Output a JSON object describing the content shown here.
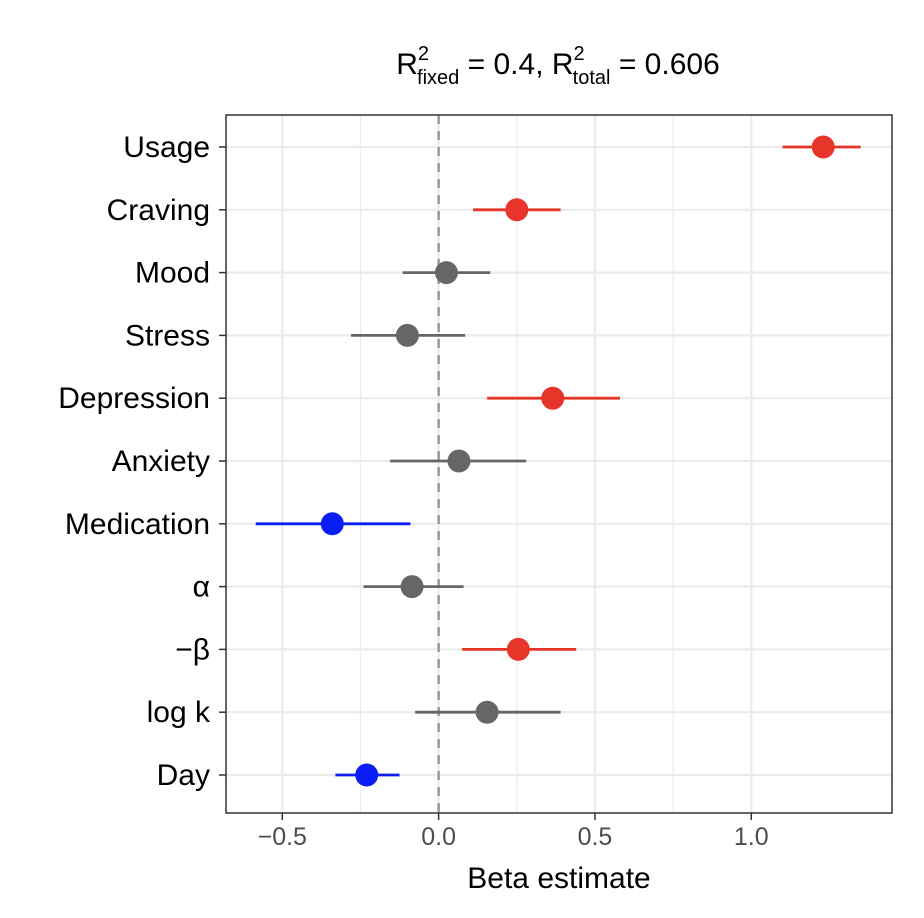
{
  "chart_data": {
    "type": "forest",
    "title": {
      "r_symbol": "R",
      "sup": "2",
      "fixed_sub": "fixed",
      "fixed_value": " = 0.4, ",
      "total_sub": "total",
      "total_value": " = 0.606"
    },
    "xlabel": "Beta estimate",
    "xlim": [
      -0.68,
      1.45
    ],
    "xticks": [
      -0.5,
      0.0,
      0.5,
      1.0
    ],
    "xtick_labels": [
      "−0.5",
      "0.0",
      "0.5",
      "1.0"
    ],
    "reference_line": 0,
    "grid": true,
    "colors": {
      "positive": "#e8352a",
      "negative": "#0a1ef5",
      "nonsignificant": "#666666",
      "reference": "#999999",
      "grid": "#ebebeb",
      "border": "#333333"
    },
    "points": [
      {
        "label": "Usage",
        "estimate": 1.23,
        "lower": 1.1,
        "upper": 1.35,
        "sig": "positive"
      },
      {
        "label": "Craving",
        "estimate": 0.25,
        "lower": 0.11,
        "upper": 0.39,
        "sig": "positive"
      },
      {
        "label": "Mood",
        "estimate": 0.025,
        "lower": -0.115,
        "upper": 0.165,
        "sig": "nonsignificant"
      },
      {
        "label": "Stress",
        "estimate": -0.1,
        "lower": -0.28,
        "upper": 0.085,
        "sig": "nonsignificant"
      },
      {
        "label": "Depression",
        "estimate": 0.365,
        "lower": 0.155,
        "upper": 0.58,
        "sig": "positive"
      },
      {
        "label": "Anxiety",
        "estimate": 0.065,
        "lower": -0.155,
        "upper": 0.28,
        "sig": "nonsignificant"
      },
      {
        "label": "Medication",
        "estimate": -0.34,
        "lower": -0.585,
        "upper": -0.09,
        "sig": "negative"
      },
      {
        "label": "α",
        "estimate": -0.085,
        "lower": -0.24,
        "upper": 0.08,
        "sig": "nonsignificant"
      },
      {
        "label": "−β",
        "estimate": 0.255,
        "lower": 0.075,
        "upper": 0.44,
        "sig": "positive"
      },
      {
        "label": "log k",
        "estimate": 0.155,
        "lower": -0.075,
        "upper": 0.39,
        "sig": "nonsignificant"
      },
      {
        "label": "Day",
        "estimate": -0.23,
        "lower": -0.33,
        "upper": -0.125,
        "sig": "negative"
      }
    ]
  }
}
